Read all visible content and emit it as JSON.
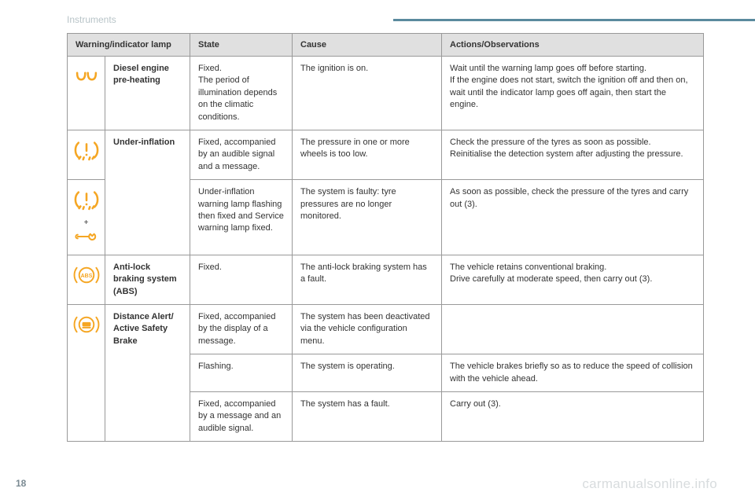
{
  "header": "Instruments",
  "page_number": "18",
  "watermark": "carmanualsonline.info",
  "columns": [
    "Warning/indicator lamp",
    "State",
    "Cause",
    "Actions/Observations"
  ],
  "icon_color": "#f5a623",
  "rows": [
    {
      "icon": "preheat",
      "name": "Diesel engine pre-heating",
      "state": "Fixed.\nThe period of illumination depends on the climatic conditions.",
      "cause": "The ignition is on.",
      "action": "Wait until the warning lamp goes off before starting.\nIf the engine does not start, switch the ignition off and then on, wait until the indicator lamp goes off again, then start the engine."
    },
    {
      "icon": "tyre",
      "name": "Under-inflation",
      "name_rowspan": 2,
      "state": "Fixed, accompanied by an audible signal and a message.",
      "cause": "The pressure in one or more wheels is too low.",
      "action": "Check the pressure of the tyres as soon as possible.\nReinitialise the detection system after adjusting the pressure."
    },
    {
      "icon": "tyre-service",
      "state": "Under-inflation warning lamp flashing then fixed and Service warning lamp fixed.",
      "cause": "The system is faulty: tyre pressures are no longer monitored.",
      "action": "As soon as possible, check the pressure of the tyres and carry out (3)."
    },
    {
      "icon": "abs",
      "name": "Anti-lock braking system (ABS)",
      "state": "Fixed.",
      "cause": "The anti-lock braking system has a fault.",
      "action": "The vehicle retains conventional braking.\nDrive carefully at moderate speed, then carry out (3)."
    },
    {
      "icon": "distance",
      "icon_rowspan": 3,
      "name": "Distance Alert/ Active Safety Brake",
      "name_rowspan": 3,
      "state": "Fixed, accompanied by the display of a message.",
      "cause": "The system has been deactivated via the vehicle configuration menu.",
      "action": ""
    },
    {
      "state": "Flashing.",
      "cause": "The system is operating.",
      "action": "The vehicle brakes briefly so as to reduce the speed of collision with the vehicle ahead."
    },
    {
      "state": "Fixed, accompanied by a message and an audible signal.",
      "cause": "The system has a fault.",
      "action": "Carry out (3)."
    }
  ]
}
